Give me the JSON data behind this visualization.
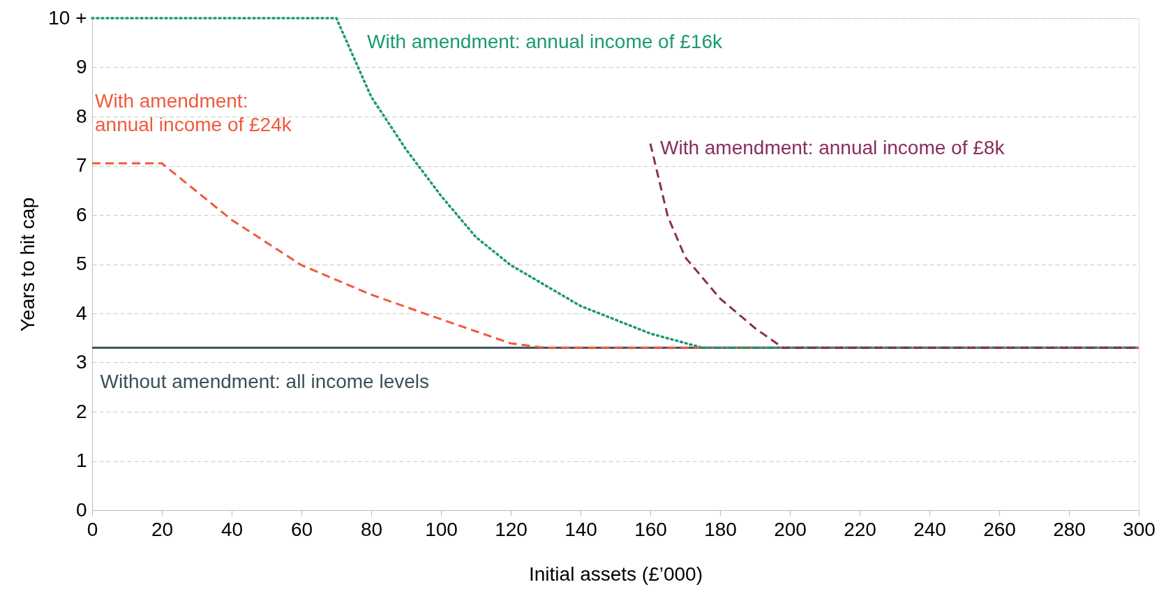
{
  "chart_data": {
    "type": "line",
    "xlabel": "Initial assets (£’000)",
    "ylabel": "Years to hit cap",
    "xlim": [
      0,
      300
    ],
    "xticks": [
      0,
      20,
      40,
      60,
      80,
      100,
      120,
      140,
      160,
      180,
      200,
      220,
      240,
      260,
      280,
      300
    ],
    "ylim": [
      0,
      10
    ],
    "yticks": [
      0,
      1,
      2,
      3,
      4,
      5,
      6,
      7,
      8,
      9,
      {
        "value": 10,
        "label": "10 +"
      }
    ],
    "grid": "y",
    "series": [
      {
        "name": "Without amendment: all income levels",
        "color": "#3b5058",
        "line_style": "solid",
        "x": [
          0,
          300
        ],
        "values": [
          3.3,
          3.3
        ]
      },
      {
        "name": "With amendment: annual income of £24k",
        "color": "#f05a3c",
        "line_style": "dashed",
        "x": [
          0,
          20,
          40,
          60,
          80,
          100,
          120,
          130,
          300
        ],
        "values": [
          7.05,
          7.05,
          5.9,
          4.98,
          4.38,
          3.88,
          3.39,
          3.3,
          3.3
        ]
      },
      {
        "name": "With amendment: annual income of £16k",
        "color": "#1b9a72",
        "line_style": "dotted",
        "x": [
          0,
          70,
          80,
          90,
          100,
          110,
          120,
          140,
          160,
          175,
          300
        ],
        "values": [
          10,
          10,
          8.4,
          7.33,
          6.39,
          5.55,
          4.98,
          4.15,
          3.59,
          3.3,
          3.3
        ]
      },
      {
        "name": "With amendment: annual income of £8k",
        "color": "#8a2d5c",
        "line_style": "dashed",
        "x": [
          160,
          165,
          170,
          180,
          190,
          198,
          300
        ],
        "values": [
          7.45,
          5.97,
          5.14,
          4.3,
          3.7,
          3.3,
          3.3
        ]
      }
    ]
  }
}
